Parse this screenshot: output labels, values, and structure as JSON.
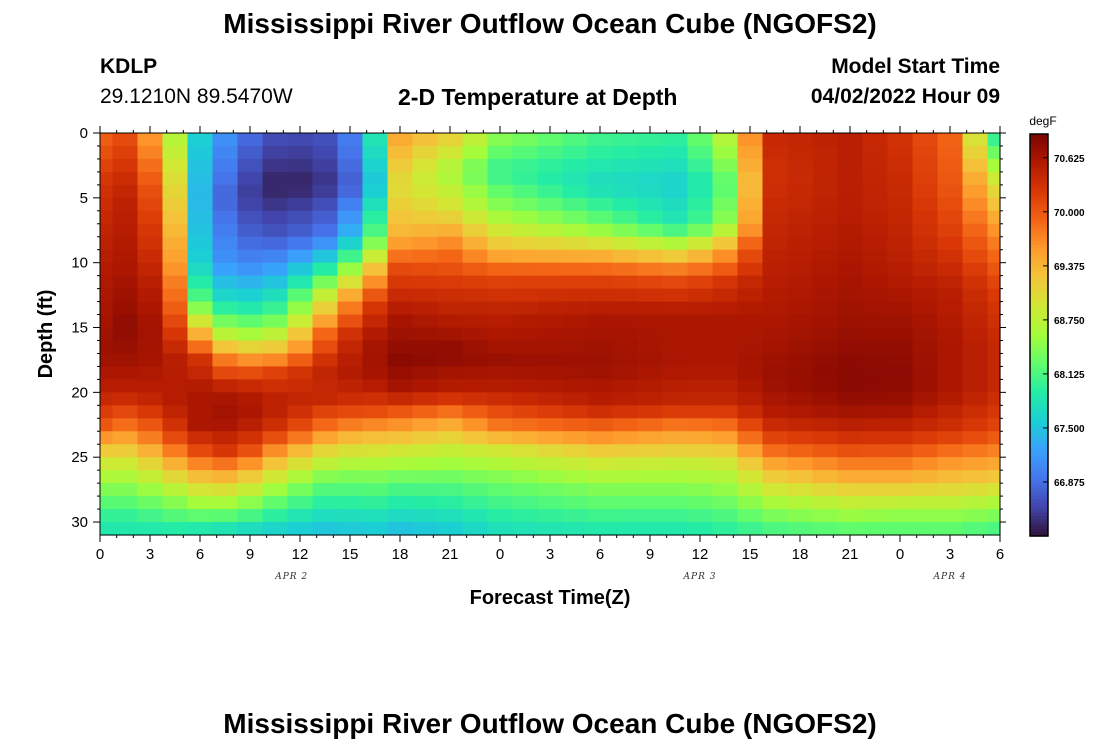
{
  "header": {
    "title": "Mississippi River Outflow Ocean Cube (NGOFS2)",
    "station": "KDLP",
    "coords": "29.1210N  89.5470W",
    "subtitle": "2-D Temperature at Depth",
    "start_label": "Model Start Time",
    "start_value": "04/02/2022 Hour 09"
  },
  "footer": {
    "title": "Mississippi River Outflow Ocean Cube (NGOFS2)"
  },
  "colors": {
    "colormap": [
      "#30123b",
      "#4145ab",
      "#4675ed",
      "#39a2fc",
      "#1bcfd4",
      "#24eca6",
      "#61fc6c",
      "#a4fc3b",
      "#d1e834",
      "#f3c63a",
      "#fe9b2d",
      "#f36315",
      "#d93806",
      "#b11901",
      "#7a0402"
    ]
  },
  "chart_data": {
    "type": "heatmap",
    "xlabel": "Forecast Time(Z)",
    "ylabel": "Depth (ft)",
    "ylim": [
      31,
      0
    ],
    "xlim": [
      0,
      54
    ],
    "x_ticks": [
      "0",
      "3",
      "6",
      "9",
      "12",
      "15",
      "18",
      "21",
      "0",
      "3",
      "6",
      "9",
      "12",
      "15",
      "18",
      "21",
      "0",
      "3",
      "6"
    ],
    "y_ticks": [
      "0",
      "5",
      "10",
      "15",
      "20",
      "25",
      "30"
    ],
    "date_labels": [
      {
        "text": "APR 2",
        "hour": 11.5
      },
      {
        "text": "APR 3",
        "hour": 36
      },
      {
        "text": "APR 4",
        "hour": 51
      }
    ],
    "colorbar": {
      "unit": "degF",
      "min": 66.25,
      "max": 70.9,
      "tick_labels": [
        "70.625",
        "70.000",
        "69.375",
        "68.750",
        "68.125",
        "67.500",
        "66.875"
      ],
      "tick_values": [
        70.625,
        70.0,
        69.375,
        68.75,
        68.125,
        67.5,
        66.875
      ]
    },
    "grid_hours": [
      0,
      1.5,
      3,
      4.5,
      6,
      7.5,
      9,
      10.5,
      12,
      13.5,
      15,
      16.5,
      18,
      19.5,
      21,
      22.5,
      24,
      25.5,
      27,
      28.5,
      30,
      31.5,
      33,
      34.5,
      36,
      37.5,
      39,
      40.5,
      42,
      43.5,
      45,
      46.5,
      48,
      49.5,
      51,
      52.5,
      54
    ],
    "depth_profiles": [
      {
        "hour": 0,
        "profile": [
          [
            0,
            69.9
          ],
          [
            4,
            70.3
          ],
          [
            10,
            70.55
          ],
          [
            17,
            70.7
          ],
          [
            20,
            70.5
          ],
          [
            22.5,
            70.0
          ],
          [
            25,
            69.0
          ],
          [
            27.5,
            68.4
          ],
          [
            29.5,
            68.0
          ],
          [
            31,
            67.8
          ]
        ]
      },
      {
        "hour": 2,
        "profile": [
          [
            0,
            70.1
          ],
          [
            5,
            70.5
          ],
          [
            10,
            70.6
          ],
          [
            15,
            70.8
          ],
          [
            17,
            70.7
          ],
          [
            20,
            70.5
          ],
          [
            22.5,
            69.8
          ],
          [
            25,
            69.0
          ],
          [
            27.5,
            68.4
          ],
          [
            29.5,
            68.0
          ],
          [
            31,
            67.8
          ]
        ]
      },
      {
        "hour": 4,
        "profile": [
          [
            0,
            69.0
          ],
          [
            4,
            69.6
          ],
          [
            9,
            70.1
          ],
          [
            12,
            70.4
          ],
          [
            17,
            70.6
          ],
          [
            21,
            70.5
          ],
          [
            23.5,
            70.0
          ],
          [
            25.5,
            69.3
          ],
          [
            28,
            68.5
          ],
          [
            31,
            67.8
          ]
        ]
      },
      {
        "hour": 6,
        "profile": [
          [
            0,
            67.6
          ],
          [
            5,
            67.4
          ],
          [
            10,
            67.6
          ],
          [
            13,
            68.2
          ],
          [
            15.5,
            69.4
          ],
          [
            17.5,
            70.3
          ],
          [
            20,
            70.6
          ],
          [
            22.5,
            70.6
          ],
          [
            24.5,
            70.1
          ],
          [
            26.5,
            69.3
          ],
          [
            29,
            68.4
          ],
          [
            31,
            67.7
          ]
        ]
      },
      {
        "hour": 8,
        "profile": [
          [
            0,
            67.0
          ],
          [
            5,
            66.6
          ],
          [
            10,
            67.0
          ],
          [
            13,
            67.6
          ],
          [
            15.5,
            68.5
          ],
          [
            17.5,
            69.6
          ],
          [
            20,
            70.6
          ],
          [
            22,
            70.7
          ],
          [
            24.5,
            70.3
          ],
          [
            26.5,
            69.4
          ],
          [
            29,
            68.4
          ],
          [
            31,
            67.6
          ]
        ]
      },
      {
        "hour": 11,
        "profile": [
          [
            0,
            66.6
          ],
          [
            4,
            66.3
          ],
          [
            8,
            66.7
          ],
          [
            11,
            67.4
          ],
          [
            14,
            68.2
          ],
          [
            16.5,
            69.2
          ],
          [
            18.5,
            70.2
          ],
          [
            21,
            70.5
          ],
          [
            23,
            70.2
          ],
          [
            25,
            69.3
          ],
          [
            28,
            68.3
          ],
          [
            31,
            67.5
          ]
        ]
      },
      {
        "hour": 14,
        "profile": [
          [
            0,
            66.7
          ],
          [
            4,
            66.5
          ],
          [
            8,
            67.0
          ],
          [
            10,
            67.8
          ],
          [
            12.5,
            69.0
          ],
          [
            15.5,
            70.1
          ],
          [
            18,
            70.5
          ],
          [
            20.5,
            70.4
          ],
          [
            22.5,
            69.8
          ],
          [
            24.5,
            69.0
          ],
          [
            27,
            68.2
          ],
          [
            31,
            67.4
          ]
        ]
      },
      {
        "hour": 16,
        "profile": [
          [
            0,
            67.3
          ],
          [
            4,
            67.0
          ],
          [
            8,
            67.8
          ],
          [
            10.5,
            69.0
          ],
          [
            13,
            70.1
          ],
          [
            16,
            70.6
          ],
          [
            19,
            70.6
          ],
          [
            21.5,
            70.1
          ],
          [
            23.5,
            69.3
          ],
          [
            26,
            68.5
          ],
          [
            31,
            67.5
          ]
        ]
      },
      {
        "hour": 18,
        "profile": [
          [
            0,
            69.5
          ],
          [
            4,
            69.0
          ],
          [
            8,
            69.4
          ],
          [
            10.5,
            70.1
          ],
          [
            14,
            70.6
          ],
          [
            17.5,
            70.8
          ],
          [
            20,
            70.6
          ],
          [
            22,
            69.8
          ],
          [
            24.5,
            68.9
          ],
          [
            27,
            68.2
          ],
          [
            31,
            67.4
          ]
        ]
      },
      {
        "hour": 21,
        "profile": [
          [
            0,
            69.2
          ],
          [
            3,
            68.6
          ],
          [
            6,
            69.0
          ],
          [
            9,
            69.8
          ],
          [
            12,
            70.3
          ],
          [
            15,
            70.6
          ],
          [
            17,
            70.8
          ],
          [
            20,
            70.5
          ],
          [
            22,
            69.6
          ],
          [
            24.5,
            68.8
          ],
          [
            27,
            68.2
          ],
          [
            31,
            67.5
          ]
        ]
      },
      {
        "hour": 24,
        "profile": [
          [
            0,
            68.5
          ],
          [
            3,
            68.0
          ],
          [
            6,
            68.5
          ],
          [
            9,
            69.3
          ],
          [
            11,
            70.1
          ],
          [
            14,
            70.5
          ],
          [
            17.5,
            70.7
          ],
          [
            20,
            70.5
          ],
          [
            22.5,
            69.8
          ],
          [
            24.5,
            68.9
          ],
          [
            27,
            68.3
          ],
          [
            31,
            67.7
          ]
        ]
      },
      {
        "hour": 30,
        "profile": [
          [
            0,
            68.1
          ],
          [
            4,
            67.7
          ],
          [
            7,
            68.3
          ],
          [
            9,
            69.2
          ],
          [
            11,
            70.1
          ],
          [
            14,
            70.6
          ],
          [
            18,
            70.7
          ],
          [
            21,
            70.5
          ],
          [
            23,
            69.8
          ],
          [
            25,
            69.0
          ],
          [
            27.5,
            68.4
          ],
          [
            31,
            67.8
          ]
        ]
      },
      {
        "hour": 35,
        "profile": [
          [
            0,
            68.0
          ],
          [
            4,
            67.6
          ],
          [
            7,
            67.8
          ],
          [
            9,
            68.9
          ],
          [
            11,
            70.0
          ],
          [
            14,
            70.6
          ],
          [
            18,
            70.6
          ],
          [
            21,
            70.4
          ],
          [
            23,
            69.6
          ],
          [
            25.5,
            68.8
          ],
          [
            28,
            68.3
          ],
          [
            31,
            67.8
          ]
        ]
      },
      {
        "hour": 38,
        "profile": [
          [
            0,
            68.9
          ],
          [
            4,
            68.3
          ],
          [
            7,
            68.6
          ],
          [
            9,
            69.6
          ],
          [
            11.5,
            70.3
          ],
          [
            14,
            70.6
          ],
          [
            18,
            70.6
          ],
          [
            21,
            70.4
          ],
          [
            23,
            69.7
          ],
          [
            25.5,
            68.9
          ],
          [
            28,
            68.4
          ],
          [
            31,
            67.9
          ]
        ]
      },
      {
        "hour": 40,
        "profile": [
          [
            0,
            70.4
          ],
          [
            3,
            70.3
          ],
          [
            7,
            70.4
          ],
          [
            11,
            70.5
          ],
          [
            15,
            70.6
          ],
          [
            19,
            70.7
          ],
          [
            22,
            70.5
          ],
          [
            24,
            70.0
          ],
          [
            26,
            69.3
          ],
          [
            28.5,
            68.6
          ],
          [
            31,
            68.0
          ]
        ]
      },
      {
        "hour": 45,
        "profile": [
          [
            0,
            70.5
          ],
          [
            5,
            70.5
          ],
          [
            10,
            70.6
          ],
          [
            15,
            70.7
          ],
          [
            18,
            70.8
          ],
          [
            20,
            70.8
          ],
          [
            22,
            70.6
          ],
          [
            24,
            70.2
          ],
          [
            26,
            69.6
          ],
          [
            28.5,
            68.8
          ],
          [
            31,
            68.1
          ]
        ]
      },
      {
        "hour": 48,
        "profile": [
          [
            0,
            70.3
          ],
          [
            5,
            70.4
          ],
          [
            10,
            70.5
          ],
          [
            15,
            70.7
          ],
          [
            19,
            70.8
          ],
          [
            21,
            70.7
          ],
          [
            23,
            70.4
          ],
          [
            25,
            69.9
          ],
          [
            27,
            69.3
          ],
          [
            29,
            68.6
          ],
          [
            31,
            68.1
          ]
        ]
      },
      {
        "hour": 51,
        "profile": [
          [
            0,
            69.9
          ],
          [
            4,
            70.0
          ],
          [
            8,
            70.2
          ],
          [
            12,
            70.5
          ],
          [
            16,
            70.6
          ],
          [
            20,
            70.6
          ],
          [
            23,
            70.3
          ],
          [
            25,
            69.7
          ],
          [
            27,
            69.2
          ],
          [
            29,
            68.6
          ],
          [
            31,
            68.1
          ]
        ]
      },
      {
        "hour": 54,
        "profile": [
          [
            0,
            67.9
          ],
          [
            4,
            69.0
          ],
          [
            8,
            69.7
          ],
          [
            12,
            70.2
          ],
          [
            16,
            70.4
          ],
          [
            20,
            70.4
          ],
          [
            23,
            70.1
          ],
          [
            25,
            69.6
          ],
          [
            27,
            69.1
          ],
          [
            29,
            68.5
          ],
          [
            31,
            68.0
          ]
        ]
      }
    ]
  }
}
